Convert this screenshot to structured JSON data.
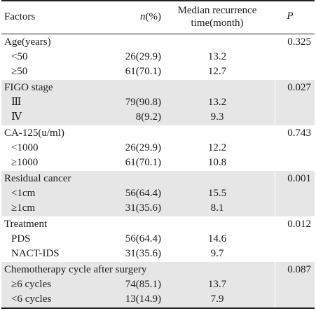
{
  "header": {
    "factors": "Factors",
    "n_italic": "n",
    "n_rest": "(%)",
    "median_line1": "Median recurrence",
    "median_line2": "time(month)",
    "p": "P"
  },
  "groups": [
    {
      "label": "Age(years)",
      "p": "0.325",
      "rows": [
        {
          "label": "<50",
          "n": "26(29.9)",
          "median": "13.2"
        },
        {
          "label": "≥50",
          "n": "61(70.1)",
          "median": "12.7"
        }
      ]
    },
    {
      "label": "FIGO stage",
      "p": "0.027",
      "rows": [
        {
          "label": "Ⅲ",
          "n": "79(90.8)",
          "median": "13.2"
        },
        {
          "label": "Ⅳ",
          "n": "8(9.2)",
          "median": "9.3"
        }
      ]
    },
    {
      "label": "CA-125(u/ml)",
      "p": "0.743",
      "rows": [
        {
          "label": "<1000",
          "n": "26(29.9)",
          "median": "12.2"
        },
        {
          "label": "≥1000",
          "n": "61(70.1)",
          "median": "10.8"
        }
      ]
    },
    {
      "label": "Residual cancer",
      "p": "0.001",
      "rows": [
        {
          "label": "<1cm",
          "n": "56(64.4)",
          "median": "15.5"
        },
        {
          "label": "≥1cm",
          "n": "31(35.6)",
          "median": "8.1"
        }
      ]
    },
    {
      "label": "Treatment",
      "p": "0.012",
      "rows": [
        {
          "label": "PDS",
          "n": "56(64.4)",
          "median": "14.6"
        },
        {
          "label": "NACT-IDS",
          "n": "31(35.6)",
          "median": "9.7"
        }
      ]
    },
    {
      "label": "Chemotherapy cycle after surgery",
      "p": "0.087",
      "rows": [
        {
          "label": "≥6 cycles",
          "n": "74(85.1)",
          "median": "13.7"
        },
        {
          "label": "<6 cycles",
          "n": "13(14.9)",
          "median": "7.9"
        }
      ]
    }
  ]
}
